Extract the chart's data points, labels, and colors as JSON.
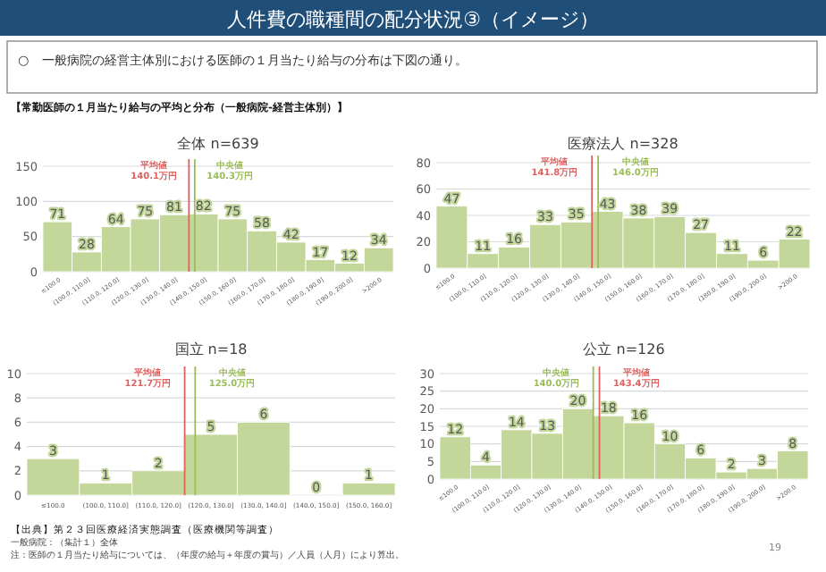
{
  "chart_data": [
    {
      "type": "other",
      "title": "人件費の職種間の配分状況③（イメージ）",
      "annotations": [
        "○　一般病院の経営主体別における医師の１月当たり給与の分布は下図の通り。",
        "【常勤医師の１月当たり給与の平均と分布（一般病院‐経営主体別）】",
        "【出典】第２３回医療経済実態調査（医療機関等調査）",
        "一般病院：（集計１）全体",
        "注：医師の１月当たり給与については、（年度の給与＋年度の賞与）／人員（人月）により算出。",
        "19"
      ]
    },
    {
      "type": "bar",
      "title": "全体 n=639",
      "values": [
        71,
        28,
        64,
        75,
        81,
        82,
        75,
        58,
        42,
        17,
        12,
        34
      ],
      "color": "#c4d79b",
      "categories": [
        "≤100.0",
        "(100.0, 110.0]",
        "(110.0, 120.0]",
        "(120.0, 130.0]",
        "(130.0, 140.0]",
        "(140.0, 150.0]",
        "(150.0, 160.0]",
        "(160.0, 170.0]",
        "(170.0, 180.0]",
        "(180.0, 190.0]",
        "(190.0, 200.0]",
        ">200.0"
      ],
      "ylim": [
        0,
        150
      ],
      "yticks": [
        0,
        50,
        100,
        150
      ],
      "grid": "y",
      "data_labels": true,
      "ref_lines": [
        {
          "axis": "x",
          "value": "(140.0, 150.0]",
          "label": "平均値\n140.1万円",
          "color": "#e06060"
        },
        {
          "axis": "x",
          "value": "(140.0, 150.0]",
          "label": "中央値\n140.3万円",
          "color": "#9bbb59"
        }
      ]
    },
    {
      "type": "bar",
      "title": "医療法人 n=328",
      "values": [
        47,
        11,
        16,
        33,
        35,
        43,
        38,
        39,
        27,
        11,
        6,
        22
      ],
      "color": "#c4d79b",
      "categories": [
        "≤100.0",
        "(100.0, 110.0]",
        "(110.0, 120.0]",
        "(120.0, 130.0]",
        "(130.0, 140.0]",
        "(140.0, 150.0]",
        "(150.0, 160.0]",
        "(160.0, 170.0]",
        "(170.0, 180.0]",
        "(180.0, 190.0]",
        "(190.0, 200.0]",
        ">200.0"
      ],
      "ylim": [
        0,
        80
      ],
      "yticks": [
        0,
        20,
        40,
        60,
        80
      ],
      "grid": "y",
      "data_labels": true,
      "ref_lines": [
        {
          "axis": "x",
          "value": "(140.0, 150.0]",
          "label": "平均値\n141.8万円",
          "color": "#e06060"
        },
        {
          "axis": "x",
          "value": "(140.0, 150.0]",
          "label": "中央値\n146.0万円",
          "color": "#9bbb59"
        }
      ]
    },
    {
      "type": "bar",
      "title": "国立 n=18",
      "values": [
        3,
        1,
        2,
        5,
        6,
        0,
        1
      ],
      "color": "#c4d79b",
      "categories": [
        "≤100.0",
        "(100.0, 110.0]",
        "(110.0, 120.0]",
        "(120.0, 130.0]",
        "(130.0, 140.0]",
        "(140.0, 150.0]",
        "(150.0, 160.0]"
      ],
      "ylim": [
        0,
        10
      ],
      "yticks": [
        0,
        2,
        4,
        6,
        8,
        10
      ],
      "grid": "y",
      "data_labels": true,
      "ref_lines": [
        {
          "axis": "x",
          "value": "(120.0, 130.0]",
          "label": "平均値\n121.7万円",
          "color": "#e06060"
        },
        {
          "axis": "x",
          "value": "(120.0, 130.0]",
          "label": "中央値\n125.0万円",
          "color": "#9bbb59"
        }
      ]
    },
    {
      "type": "bar",
      "title": "公立 n=126",
      "values": [
        12,
        4,
        14,
        13,
        20,
        18,
        16,
        10,
        6,
        2,
        3,
        8
      ],
      "color": "#c4d79b",
      "categories": [
        "≤100.0",
        "(100.0, 110.0]",
        "(110.0, 120.0]",
        "(120.0, 130.0]",
        "(130.0, 140.0]",
        "(140.0, 150.0]",
        "(150.0, 160.0]",
        "(160.0, 170.0]",
        "(170.0, 180.0]",
        "(180.0, 190.0]",
        "(190.0, 200.0]",
        ">200.0"
      ],
      "ylim": [
        0,
        30
      ],
      "yticks": [
        0,
        5,
        10,
        15,
        20,
        25,
        30
      ],
      "grid": "y",
      "data_labels": true,
      "ref_lines": [
        {
          "axis": "x",
          "value": "(140.0, 150.0]",
          "label": "中央値\n140.0万円",
          "color": "#9bbb59"
        },
        {
          "axis": "x",
          "value": "(140.0, 150.0]",
          "label": "平均値\n143.4万円",
          "color": "#e06060"
        }
      ]
    }
  ]
}
